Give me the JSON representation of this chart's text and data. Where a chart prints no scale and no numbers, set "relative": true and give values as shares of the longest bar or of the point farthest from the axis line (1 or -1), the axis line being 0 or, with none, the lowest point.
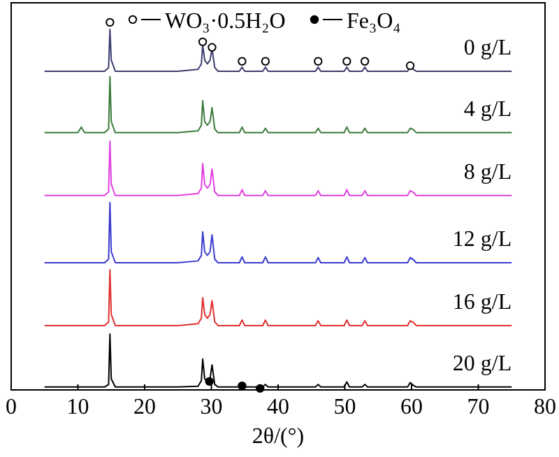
{
  "chart_data": {
    "type": "line",
    "relative": true,
    "xlabel": "2θ/(°)",
    "xlim": [
      0,
      80
    ],
    "xticks": [
      0,
      10,
      20,
      30,
      40,
      50,
      60,
      70,
      80
    ],
    "tick_labels": "x",
    "grid": false,
    "legend": "top right",
    "x": [
      5,
      10,
      10.5,
      11,
      14,
      14.6,
      14.8,
      15.0,
      15.6,
      20,
      25,
      28,
      28.5,
      28.7,
      29.0,
      29.4,
      29.8,
      30.1,
      30.5,
      31,
      34.2,
      34.6,
      35.0,
      37.7,
      38.1,
      38.5,
      45.6,
      46.0,
      46.4,
      49.9,
      50.3,
      50.7,
      52.6,
      53.0,
      53.4,
      59.4,
      59.8,
      60.3,
      60.7,
      65,
      70,
      75
    ],
    "series": [
      {
        "name": "0 g/L",
        "color": "#3c3c6e",
        "values": [
          0.867,
          0.867,
          0.867,
          0.867,
          0.867,
          0.877,
          0.981,
          0.897,
          0.867,
          0.867,
          0.867,
          0.872,
          0.887,
          0.939,
          0.897,
          0.887,
          0.897,
          0.928,
          0.877,
          0.867,
          0.867,
          0.878,
          0.867,
          0.867,
          0.878,
          0.867,
          0.867,
          0.878,
          0.867,
          0.867,
          0.878,
          0.867,
          0.867,
          0.878,
          0.867,
          0.867,
          0.878,
          0.872,
          0.867,
          0.867,
          0.867,
          0.867
        ]
      },
      {
        "name": "4 g/L",
        "color": "#3a7a3a",
        "values": [
          0.7,
          0.7,
          0.715,
          0.7,
          0.7,
          0.71,
          0.852,
          0.73,
          0.7,
          0.7,
          0.7,
          0.705,
          0.72,
          0.787,
          0.73,
          0.72,
          0.73,
          0.768,
          0.71,
          0.7,
          0.7,
          0.715,
          0.7,
          0.7,
          0.712,
          0.7,
          0.7,
          0.712,
          0.7,
          0.7,
          0.715,
          0.7,
          0.7,
          0.712,
          0.7,
          0.7,
          0.712,
          0.708,
          0.7,
          0.7,
          0.7,
          0.7
        ]
      },
      {
        "name": "8 g/L",
        "color": "#e040e0",
        "values": [
          0.529,
          0.529,
          0.529,
          0.529,
          0.529,
          0.539,
          0.677,
          0.559,
          0.529,
          0.529,
          0.529,
          0.534,
          0.549,
          0.616,
          0.559,
          0.549,
          0.559,
          0.601,
          0.539,
          0.529,
          0.529,
          0.545,
          0.529,
          0.529,
          0.542,
          0.529,
          0.529,
          0.542,
          0.529,
          0.529,
          0.545,
          0.529,
          0.529,
          0.542,
          0.529,
          0.529,
          0.542,
          0.537,
          0.529,
          0.529,
          0.529,
          0.529
        ]
      },
      {
        "name": "12 g/L",
        "color": "#3a3ad0",
        "values": [
          0.346,
          0.346,
          0.346,
          0.346,
          0.346,
          0.356,
          0.51,
          0.376,
          0.346,
          0.346,
          0.346,
          0.351,
          0.366,
          0.43,
          0.376,
          0.366,
          0.376,
          0.422,
          0.356,
          0.346,
          0.346,
          0.362,
          0.346,
          0.346,
          0.362,
          0.346,
          0.346,
          0.36,
          0.346,
          0.346,
          0.362,
          0.346,
          0.346,
          0.36,
          0.346,
          0.346,
          0.36,
          0.354,
          0.346,
          0.346,
          0.346,
          0.346
        ]
      },
      {
        "name": "16 g/L",
        "color": "#e03030",
        "values": [
          0.175,
          0.175,
          0.175,
          0.175,
          0.175,
          0.185,
          0.327,
          0.205,
          0.175,
          0.175,
          0.175,
          0.18,
          0.195,
          0.251,
          0.205,
          0.195,
          0.205,
          0.243,
          0.185,
          0.175,
          0.175,
          0.19,
          0.175,
          0.175,
          0.19,
          0.175,
          0.175,
          0.188,
          0.175,
          0.175,
          0.19,
          0.175,
          0.175,
          0.188,
          0.175,
          0.175,
          0.188,
          0.183,
          0.175,
          0.175,
          0.175,
          0.175
        ]
      },
      {
        "name": "20 g/L",
        "color": "#000000",
        "values": [
          0.008,
          0.008,
          0.008,
          0.008,
          0.008,
          0.015,
          0.152,
          0.03,
          0.008,
          0.008,
          0.008,
          0.01,
          0.025,
          0.084,
          0.03,
          0.025,
          0.03,
          0.068,
          0.015,
          0.008,
          0.008,
          0.018,
          0.008,
          0.008,
          0.015,
          0.008,
          0.008,
          0.015,
          0.008,
          0.008,
          0.022,
          0.008,
          0.008,
          0.015,
          0.008,
          0.008,
          0.02,
          0.012,
          0.008,
          0.008,
          0.008,
          0.008
        ]
      },
      {
        "name": "WO₃·0.5H₂O",
        "type": "scatter",
        "marker": "circle",
        "color": "#ffffff",
        "x": [
          14.8,
          28.7,
          30.1,
          34.6,
          38.1,
          46.0,
          50.3,
          53.0,
          59.8
        ],
        "values": [
          1.0,
          0.947,
          0.932,
          0.894,
          0.894,
          0.894,
          0.894,
          0.894,
          0.882
        ]
      },
      {
        "name": "Fe₃O₄",
        "type": "scatter",
        "marker": "circle",
        "color": "#000000",
        "x": [
          29.7,
          34.6,
          37.3
        ],
        "values": [
          0.023,
          0.011,
          0.004
        ]
      }
    ]
  }
}
